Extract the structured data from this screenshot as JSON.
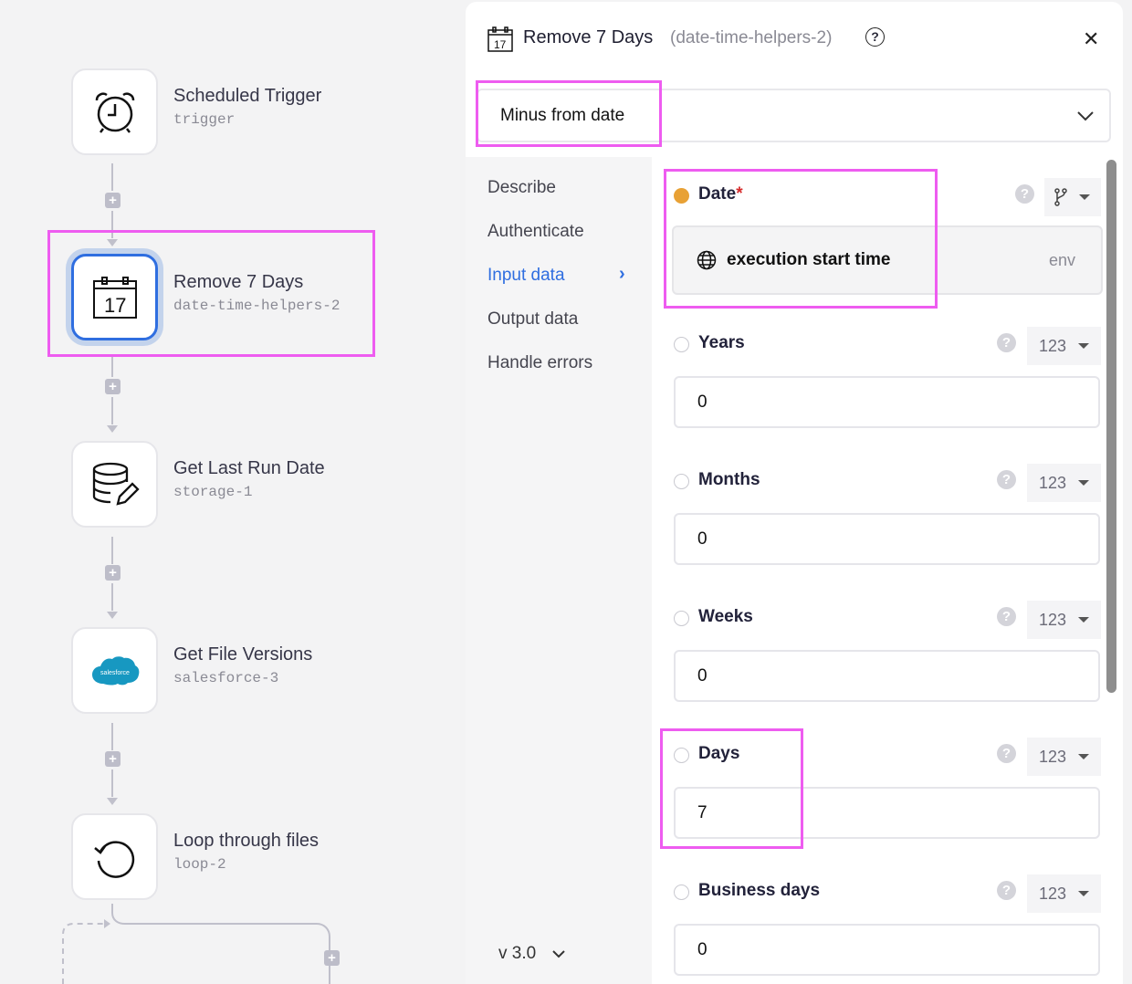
{
  "canvas": {
    "nodes": [
      {
        "title": "Scheduled Trigger",
        "id": "trigger",
        "icon": "alarm-clock-icon"
      },
      {
        "title": "Remove 7 Days",
        "id": "date-time-helpers-2",
        "icon": "calendar-icon",
        "selected": true
      },
      {
        "title": "Get Last Run Date",
        "id": "storage-1",
        "icon": "database-edit-icon"
      },
      {
        "title": "Get File Versions",
        "id": "salesforce-3",
        "icon": "salesforce-icon",
        "logo_text": "salesforce"
      },
      {
        "title": "Loop through files",
        "id": "loop-2",
        "icon": "loop-icon"
      }
    ]
  },
  "panel": {
    "title": "Remove 7 Days",
    "subtitle": "(date-time-helpers-2)",
    "calendar_day": "17",
    "operation": "Minus from date",
    "nav": [
      "Describe",
      "Authenticate",
      "Input data",
      "Output data",
      "Handle errors"
    ],
    "active_nav": "Input data",
    "version": "v 3.0",
    "accent": "#2f6ee0",
    "fields": {
      "date": {
        "label": "Date",
        "required": "*",
        "value": "execution start time",
        "source": "env"
      },
      "years": {
        "label": "Years",
        "type": "123",
        "value": "0"
      },
      "months": {
        "label": "Months",
        "type": "123",
        "value": "0"
      },
      "weeks": {
        "label": "Weeks",
        "type": "123",
        "value": "0"
      },
      "days": {
        "label": "Days",
        "type": "123",
        "value": "7"
      },
      "business_days": {
        "label": "Business days",
        "type": "123",
        "value": "0"
      }
    }
  }
}
